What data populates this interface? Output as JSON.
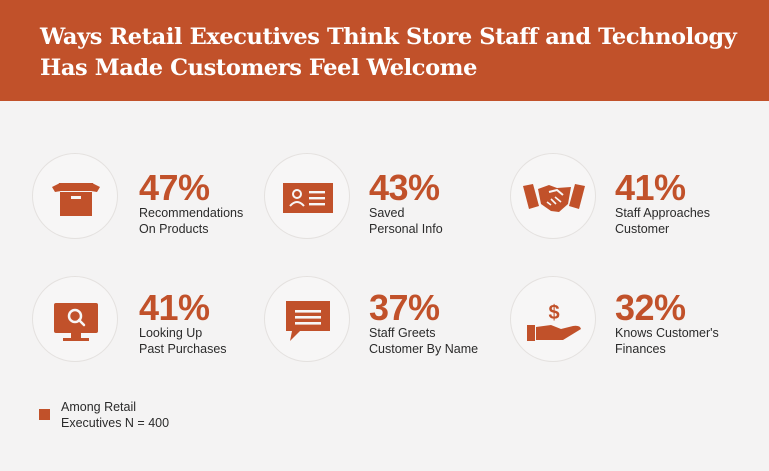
{
  "title": {
    "line1": "Ways Retail Executives Think Store Staff and Technology",
    "line2": "Has Made Customers Feel Welcome"
  },
  "chart_data": {
    "type": "table",
    "title": "Ways Retail Executives Think Store Staff and Technology Has Made Customers Feel Welcome",
    "items": [
      {
        "value": 47,
        "display": "47%",
        "label_lines": [
          "Recommendations",
          "On Products"
        ],
        "icon": "box-icon"
      },
      {
        "value": 43,
        "display": "43%",
        "label_lines": [
          "Saved",
          "Personal Info"
        ],
        "icon": "id-card-icon"
      },
      {
        "value": 41,
        "display": "41%",
        "label_lines": [
          "Staff Approaches",
          "Customer"
        ],
        "icon": "handshake-icon"
      },
      {
        "value": 41,
        "display": "41%",
        "label_lines": [
          "Looking Up",
          "Past Purchases"
        ],
        "icon": "monitor-search-icon"
      },
      {
        "value": 37,
        "display": "37%",
        "label_lines": [
          "Staff Greets",
          "Customer By Name"
        ],
        "icon": "speech-bubble-icon"
      },
      {
        "value": 32,
        "display": "32%",
        "label_lines": [
          "Knows Customer's",
          "Finances"
        ],
        "icon": "money-hand-icon"
      }
    ],
    "units": "%"
  },
  "legend": {
    "line1": "Among Retail",
    "line2": "Executives N = 400"
  },
  "colors": {
    "accent": "#c1512a",
    "background": "#f4f3f3",
    "text": "#2b2b2b"
  }
}
